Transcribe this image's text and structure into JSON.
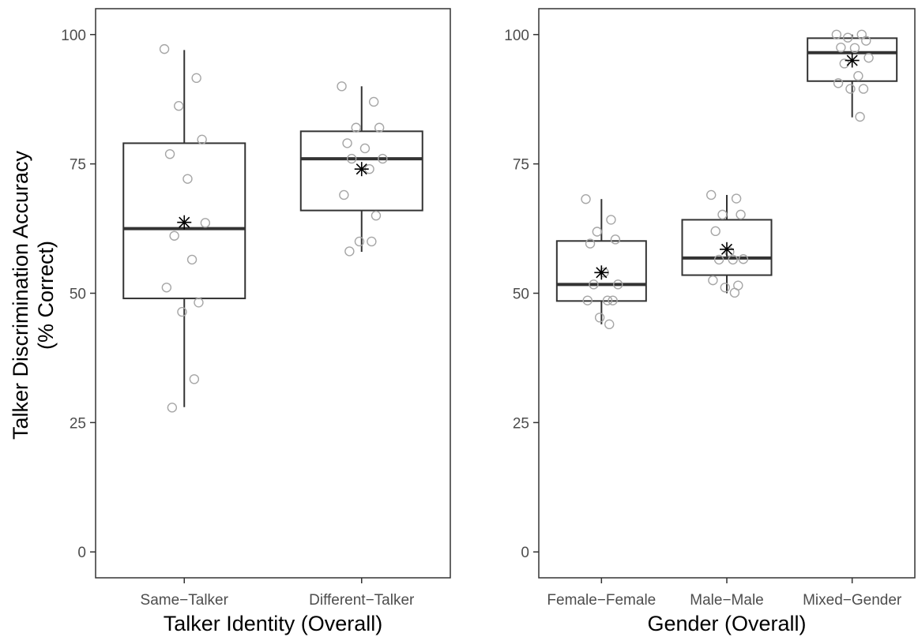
{
  "ylabel_line1": "Talker Discrimination Accuracy",
  "ylabel_line2": "(% Correct)",
  "colors": {
    "box_stroke": "#333333",
    "point_stroke": "#a6a6a6",
    "frame": "#333333",
    "tick_text": "#4d4d4d"
  },
  "chart_data": [
    {
      "type": "box",
      "xlabel": "Talker Identity (Overall)",
      "ylabel": "Talker Discrimination Accuracy (% Correct)",
      "ylim": [
        -5,
        105
      ],
      "yticks": [
        0,
        25,
        50,
        75,
        100
      ],
      "grid": false,
      "categories": [
        "Same−Talker",
        "Different−Talker"
      ],
      "boxes": [
        {
          "min": 28,
          "q1": 49,
          "median": 62.5,
          "q3": 79,
          "max": 97,
          "mean": 63.7,
          "points": [
            97.2,
            91.6,
            86.2,
            79.7,
            76.9,
            72.1,
            63.6,
            61.1,
            56.5,
            51.1,
            48.2,
            46.4,
            33.4,
            27.9
          ]
        },
        {
          "min": 58,
          "q1": 66,
          "median": 76,
          "q3": 81.3,
          "max": 90,
          "mean": 74,
          "points": [
            90,
            87,
            82,
            82,
            79,
            78,
            76,
            76,
            74,
            69,
            65,
            60,
            60,
            58.1
          ]
        }
      ]
    },
    {
      "type": "box",
      "xlabel": "Gender (Overall)",
      "ylabel": "",
      "ylim": [
        -5,
        105
      ],
      "yticks": [
        0,
        25,
        50,
        75,
        100
      ],
      "grid": false,
      "categories": [
        "Female−Female",
        "Male−Male",
        "Mixed−Gender"
      ],
      "boxes": [
        {
          "min": 44,
          "q1": 48.5,
          "median": 51.7,
          "q3": 60.1,
          "max": 68.2,
          "mean": 54,
          "points": [
            68.2,
            64.2,
            61.9,
            60.4,
            59.6,
            54,
            51.7,
            51.7,
            48.6,
            48.6,
            48.6,
            45.3,
            44
          ]
        },
        {
          "min": 50,
          "q1": 53.5,
          "median": 56.8,
          "q3": 64.2,
          "max": 69,
          "mean": 58.5,
          "points": [
            69,
            68.3,
            65.2,
            65.2,
            62,
            58,
            56.6,
            56.5,
            56.5,
            52.5,
            51.5,
            51.1,
            50.1
          ]
        },
        {
          "min": 84,
          "q1": 91,
          "median": 96.5,
          "q3": 99.3,
          "max": 100,
          "mean": 95,
          "points": [
            100,
            100,
            99.4,
            98.8,
            97.5,
            97.4,
            95.5,
            94.4,
            92,
            90.6,
            89.5,
            89.5,
            84.1
          ]
        }
      ]
    }
  ]
}
